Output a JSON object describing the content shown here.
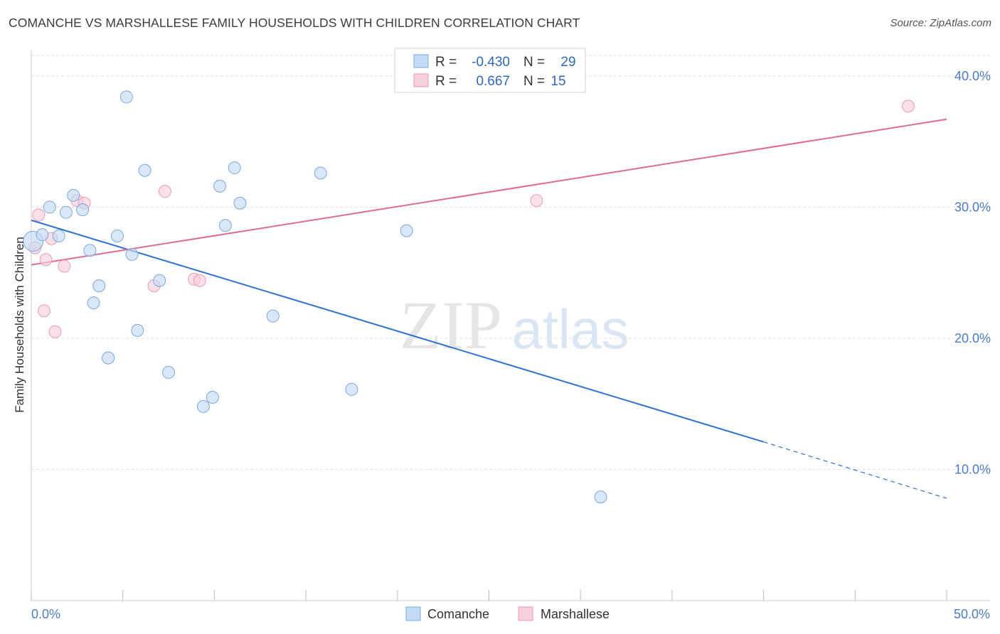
{
  "header": {
    "title": "COMANCHE VS MARSHALLESE FAMILY HOUSEHOLDS WITH CHILDREN CORRELATION CHART",
    "source": "Source: ZipAtlas.com"
  },
  "watermark": {
    "zip": "ZIP",
    "atlas": "atlas"
  },
  "colors": {
    "comanche_fill": "#c5daf5",
    "comanche_stroke": "#7aa8e0",
    "comanche_line": "#2f72cf",
    "marshallese_fill": "#f8cfdc",
    "marshallese_stroke": "#ec9ab6",
    "marshallese_line": "#e06a94",
    "grid": "#dedede",
    "tick_label": "#4a7cc9"
  },
  "legend": {
    "rows": [
      {
        "r_label": "R =",
        "r_value": "-0.430",
        "n_label": "N =",
        "n_value": "29"
      },
      {
        "r_label": "R =",
        "r_value": "0.667",
        "n_label": "N =",
        "n_value": "15"
      }
    ]
  },
  "chart_data": {
    "type": "scatter",
    "title": "COMANCHE VS MARSHALLESE FAMILY HOUSEHOLDS WITH CHILDREN CORRELATION CHART",
    "xlabel": "",
    "ylabel": "Family Households with Children",
    "xlim": [
      0,
      50
    ],
    "ylim": [
      0,
      42
    ],
    "x_tick_labels": [
      "0.0%",
      "50.0%"
    ],
    "y_ticks": [
      10,
      20,
      30,
      40
    ],
    "y_tick_labels": [
      "10.0%",
      "20.0%",
      "30.0%",
      "40.0%"
    ],
    "grid": true,
    "legend_position": "bottom",
    "series": [
      {
        "name": "Comanche",
        "R": -0.43,
        "N": 29,
        "points": [
          {
            "x": 0.1,
            "y": 27.4
          },
          {
            "x": 0.6,
            "y": 27.9
          },
          {
            "x": 1.0,
            "y": 30.0
          },
          {
            "x": 1.5,
            "y": 27.8
          },
          {
            "x": 1.9,
            "y": 29.6
          },
          {
            "x": 2.3,
            "y": 30.9
          },
          {
            "x": 2.8,
            "y": 29.8
          },
          {
            "x": 3.2,
            "y": 26.7
          },
          {
            "x": 3.4,
            "y": 22.7
          },
          {
            "x": 3.7,
            "y": 24.0
          },
          {
            "x": 4.2,
            "y": 18.5
          },
          {
            "x": 4.7,
            "y": 27.8
          },
          {
            "x": 5.2,
            "y": 38.4
          },
          {
            "x": 5.5,
            "y": 26.4
          },
          {
            "x": 5.8,
            "y": 20.6
          },
          {
            "x": 6.2,
            "y": 32.8
          },
          {
            "x": 7.0,
            "y": 24.4
          },
          {
            "x": 7.5,
            "y": 17.4
          },
          {
            "x": 9.4,
            "y": 14.8
          },
          {
            "x": 9.9,
            "y": 15.5
          },
          {
            "x": 10.3,
            "y": 31.6
          },
          {
            "x": 10.6,
            "y": 28.6
          },
          {
            "x": 11.1,
            "y": 33.0
          },
          {
            "x": 11.4,
            "y": 30.3
          },
          {
            "x": 13.2,
            "y": 21.7
          },
          {
            "x": 15.8,
            "y": 32.6
          },
          {
            "x": 17.5,
            "y": 16.1
          },
          {
            "x": 20.5,
            "y": 28.2
          },
          {
            "x": 31.1,
            "y": 7.9
          }
        ],
        "trend": {
          "x0": 0,
          "y0": 29.0,
          "x1": 40,
          "y1": 12.1,
          "x_dash_end": 50,
          "y_dash_end": 7.8
        }
      },
      {
        "name": "Marshallese",
        "R": 0.667,
        "N": 15,
        "points": [
          {
            "x": 0.2,
            "y": 26.9
          },
          {
            "x": 0.4,
            "y": 29.4
          },
          {
            "x": 0.7,
            "y": 22.1
          },
          {
            "x": 0.8,
            "y": 26.0
          },
          {
            "x": 1.1,
            "y": 27.6
          },
          {
            "x": 1.3,
            "y": 20.5
          },
          {
            "x": 1.8,
            "y": 25.5
          },
          {
            "x": 2.5,
            "y": 30.5
          },
          {
            "x": 2.9,
            "y": 30.3
          },
          {
            "x": 6.7,
            "y": 24.0
          },
          {
            "x": 7.3,
            "y": 31.2
          },
          {
            "x": 8.9,
            "y": 24.5
          },
          {
            "x": 9.2,
            "y": 24.4
          },
          {
            "x": 27.6,
            "y": 30.5
          },
          {
            "x": 47.9,
            "y": 37.7
          }
        ],
        "trend": {
          "x0": 0,
          "y0": 25.6,
          "x1": 50,
          "y1": 36.7
        }
      }
    ]
  }
}
